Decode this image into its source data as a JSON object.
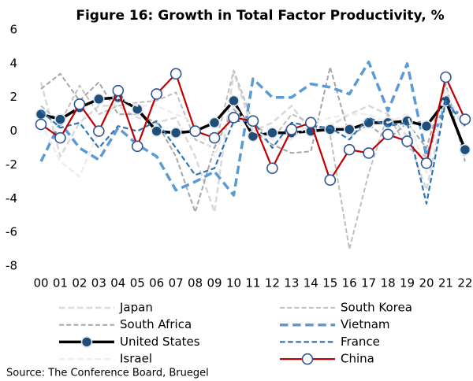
{
  "chart_data": {
    "type": "line",
    "title": "Figure 16: Growth in Total Factor Productivity, %",
    "source": "Source: The Conference Board, Bruegel",
    "categories": [
      "00",
      "01",
      "02",
      "03",
      "04",
      "05",
      "06",
      "07",
      "08",
      "09",
      "10",
      "11",
      "12",
      "13",
      "14",
      "15",
      "16",
      "17",
      "18",
      "19",
      "20",
      "21",
      "22"
    ],
    "ylim": [
      -8,
      6
    ],
    "yticks": [
      -8,
      -6,
      -4,
      -2,
      0,
      2,
      4,
      6
    ],
    "grid": false,
    "series": [
      {
        "name": "Japan",
        "color": "#d9d9d9",
        "style": "dashed",
        "width": 2.5,
        "marker": false,
        "values": [
          2.9,
          -1.5,
          0.5,
          1.5,
          1.5,
          0.8,
          0.5,
          0.8,
          -1.5,
          -4.8,
          3.5,
          0.0,
          0.5,
          1.5,
          0.0,
          0.3,
          1.0,
          1.5,
          1.0,
          -0.3,
          -3.5,
          2.0,
          0.5
        ]
      },
      {
        "name": "South Korea",
        "color": "#bfbfbf",
        "style": "dashed",
        "width": 2,
        "marker": false,
        "values": [
          1.5,
          0.5,
          2.7,
          1.0,
          1.5,
          1.7,
          1.8,
          2.3,
          -0.5,
          -1.0,
          3.6,
          0.5,
          -0.5,
          1.0,
          0.5,
          -0.2,
          -7.0,
          -2.5,
          1.0,
          -1.0,
          -1.5,
          2.0,
          -1.5
        ]
      },
      {
        "name": "South Africa",
        "color": "#a6a6a6",
        "style": "dashed",
        "width": 2,
        "marker": false,
        "values": [
          2.5,
          3.4,
          1.8,
          2.9,
          1.0,
          1.0,
          0.5,
          -1.5,
          -4.8,
          -1.0,
          1.3,
          0.0,
          -0.8,
          -1.3,
          -1.2,
          3.8,
          -0.3,
          0.4,
          -0.5,
          0.5,
          -1.0,
          2.8,
          -1.8
        ]
      },
      {
        "name": "Vietnam",
        "color": "#5b9bd5",
        "style": "dashed",
        "width": 3.5,
        "marker": false,
        "values": [
          -1.8,
          0.5,
          -1.0,
          -1.7,
          0.2,
          -0.8,
          -1.5,
          -3.5,
          -3.0,
          -2.4,
          -3.8,
          3.1,
          2.0,
          2.0,
          2.8,
          2.6,
          2.2,
          4.1,
          1.2,
          4.0,
          -1.5,
          1.7,
          0.7
        ]
      },
      {
        "name": "United States",
        "color": "#000000",
        "style": "solid",
        "width": 3.5,
        "marker": true,
        "marker_fill": "#1f4e79",
        "marker_stroke": "#dfe7f1",
        "values": [
          1.0,
          0.7,
          1.4,
          1.9,
          2.0,
          1.3,
          0.0,
          -0.1,
          0.0,
          0.5,
          1.8,
          -0.3,
          -0.1,
          -0.1,
          0.0,
          0.1,
          0.1,
          0.5,
          0.5,
          0.6,
          0.3,
          1.8,
          -1.1
        ]
      },
      {
        "name": "France",
        "color": "#2e75b6",
        "style": "dashed",
        "width": 2.2,
        "marker": false,
        "values": [
          1.2,
          0.2,
          0.5,
          -1.0,
          0.3,
          0.0,
          0.6,
          -1.0,
          -2.6,
          -2.2,
          0.6,
          0.6,
          -1.0,
          0.5,
          0.3,
          0.2,
          -0.5,
          0.8,
          0.3,
          0.5,
          -4.3,
          1.8,
          0.3
        ]
      },
      {
        "name": "Israel",
        "color": "#ededed",
        "style": "dashed",
        "width": 2.5,
        "marker": false,
        "values": [
          0.5,
          -1.8,
          -2.7,
          0.0,
          2.0,
          1.5,
          1.5,
          1.0,
          0.5,
          -1.5,
          1.5,
          0.0,
          -0.5,
          -0.5,
          0.5,
          0.8,
          1.0,
          1.0,
          0.5,
          1.0,
          -2.5,
          2.5,
          0.0
        ]
      },
      {
        "name": "China",
        "color": "#c00000",
        "style": "solid",
        "width": 2.2,
        "marker": true,
        "marker_fill": "#ffffff",
        "marker_stroke": "#2f5597",
        "values": [
          0.4,
          -0.4,
          1.6,
          0.0,
          2.4,
          -0.9,
          2.2,
          3.4,
          0.0,
          -0.4,
          0.8,
          0.6,
          -2.2,
          0.1,
          0.5,
          -2.9,
          -1.1,
          -1.3,
          -0.2,
          -0.6,
          -1.9,
          3.2,
          0.7
        ]
      }
    ]
  }
}
